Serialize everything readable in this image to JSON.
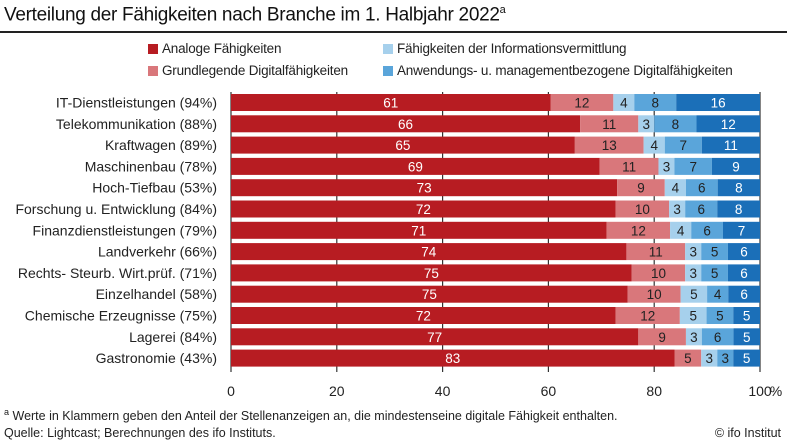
{
  "title": "Verteilung der Fähigkeiten nach Branche im 1. Halbjahr 2022",
  "title_sup": "a",
  "footnote_marker": "a",
  "footnote": "Werte in Klammern geben den Anteil der Stellenanzeigen an, die mindestenseine digitale Fähigkeit enthalten.",
  "source": "Quelle: Lightcast; Berechnungen des ifo Instituts.",
  "copyright": "© ifo Institut",
  "chart_data": {
    "type": "bar",
    "orientation": "horizontal",
    "stacked": true,
    "title": "Verteilung der Fähigkeiten nach Branche im 1. Halbjahr 2022",
    "xlim": [
      0,
      100
    ],
    "xticks": [
      "0",
      "20",
      "40",
      "60",
      "80",
      "100"
    ],
    "xunit": "%",
    "grid": "vertical",
    "legend": "top",
    "categories": [
      "IT-Dienstleistungen (94%)",
      "Telekommunikation (88%)",
      "Kraftwagen (89%)",
      "Maschinenbau (78%)",
      "Hoch-Tiefbau (53%)",
      "Forschung u. Entwicklung (84%)",
      "Finanzdienstleistungen (79%)",
      "Landverkehr (66%)",
      "Rechts- Steurb. Wirt.prüf. (71%)",
      "Einzelhandel (58%)",
      "Chemische Erzeugnisse (75%)",
      "Lagerei (84%)",
      "Gastronomie (43%)"
    ],
    "series": [
      {
        "name": "Analoge Fähigkeiten",
        "color": "#b71c22",
        "label_color": "#ffffff",
        "values": [
          61,
          66,
          65,
          69,
          73,
          72,
          71,
          74,
          75,
          75,
          72,
          77,
          83
        ]
      },
      {
        "name": "Grundlegende Digitalfähigkeiten",
        "color": "#d9777b",
        "label_color": "#222222",
        "values": [
          12,
          11,
          13,
          11,
          9,
          10,
          12,
          11,
          10,
          10,
          12,
          9,
          5
        ]
      },
      {
        "name": "Fähigkeiten der Informationsvermittlung",
        "color": "#a6d0ec",
        "label_color": "#222222",
        "values": [
          4,
          3,
          4,
          3,
          4,
          3,
          4,
          3,
          3,
          5,
          5,
          3,
          3
        ]
      },
      {
        "name": "Anwendungs- u. managementbezogene Digitalfähigkeiten",
        "color": "#5aa5da",
        "label_color": "#222222",
        "values": [
          8,
          8,
          7,
          7,
          6,
          6,
          6,
          5,
          5,
          4,
          5,
          6,
          3
        ]
      },
      {
        "name": "",
        "color": "#1b6fb8",
        "label_color": "#ffffff",
        "values": [
          16,
          12,
          11,
          9,
          8,
          8,
          7,
          6,
          6,
          6,
          5,
          5,
          5
        ]
      }
    ]
  }
}
